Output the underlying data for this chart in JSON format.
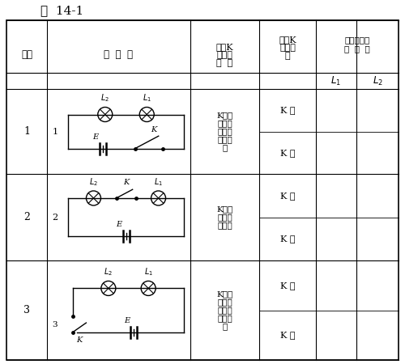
{
  "title": "表  14-1",
  "title_fontsize": 11,
  "bg_color": "#ffffff",
  "k_positions": [
    "K接在\n电源正\n极和小\n灯泡之\n间",
    "K接在\n两小灯\n泡之间",
    "K接在\n电源负\n极和小\n灯泡之\n间"
  ],
  "k_states": [
    "K 通",
    "K 断",
    "K 通",
    "K 断",
    "K 通",
    "K 断"
  ]
}
